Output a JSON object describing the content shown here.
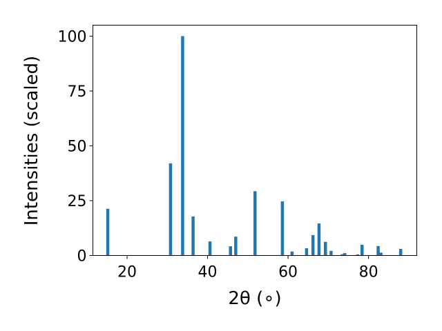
{
  "chart_data": {
    "type": "bar",
    "xlabel": "2θ (∘)",
    "ylabel": "Intensities (scaled)",
    "xlim": [
      11.5,
      92
    ],
    "ylim": [
      0,
      105
    ],
    "x_ticks": [
      20,
      40,
      60,
      80
    ],
    "y_ticks": [
      0,
      25,
      50,
      75,
      100
    ],
    "grid": false,
    "bar_color": "#1f77b4",
    "series": [
      {
        "x": [
          15.2,
          30.8,
          33.8,
          36.4,
          40.6,
          45.7,
          47.0,
          51.8,
          58.6,
          61.0,
          64.6,
          66.2,
          67.7,
          69.3,
          70.7,
          73.5,
          74.1,
          77.3,
          78.4,
          82.4,
          83.1,
          88.0
        ],
        "values": [
          21.3,
          42.0,
          100.0,
          17.8,
          6.4,
          4.2,
          8.6,
          29.3,
          24.7,
          1.8,
          3.3,
          9.3,
          14.6,
          6.2,
          2.1,
          0.6,
          1.1,
          0.5,
          4.9,
          4.3,
          1.3,
          3.0
        ]
      }
    ]
  }
}
